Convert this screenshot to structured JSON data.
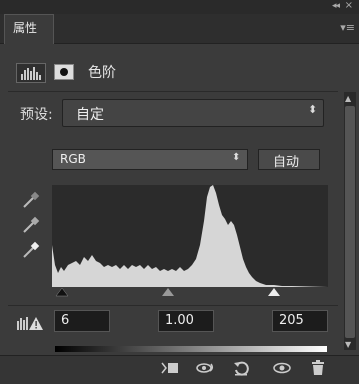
{
  "window": {
    "collapse_label": "◂◂",
    "close_label": "×"
  },
  "panel": {
    "tab_label": "属性",
    "menu_icon": "panel-menu-icon"
  },
  "adjustment": {
    "title": "色阶",
    "icon": "levels-adjustment-icon",
    "mask_icon": "layer-mask-icon"
  },
  "preset": {
    "label": "预设:",
    "value": "自定"
  },
  "channel": {
    "value": "RGB",
    "auto_label": "自动"
  },
  "eyedroppers": [
    "black-point-eyedropper-icon",
    "gray-point-eyedropper-icon",
    "white-point-eyedropper-icon"
  ],
  "levels": {
    "black_input": "6",
    "gamma": "1.00",
    "white_input": "205"
  },
  "bottom_icons": [
    "clip-to-layer-icon",
    "view-previous-state-icon",
    "reset-icon",
    "visibility-eye-icon",
    "trash-icon"
  ],
  "colors": {
    "panel_bg": "#3b3b3b",
    "histogram_bg": "#2b2b2b",
    "histogram_fill": "#d6d6d6"
  }
}
